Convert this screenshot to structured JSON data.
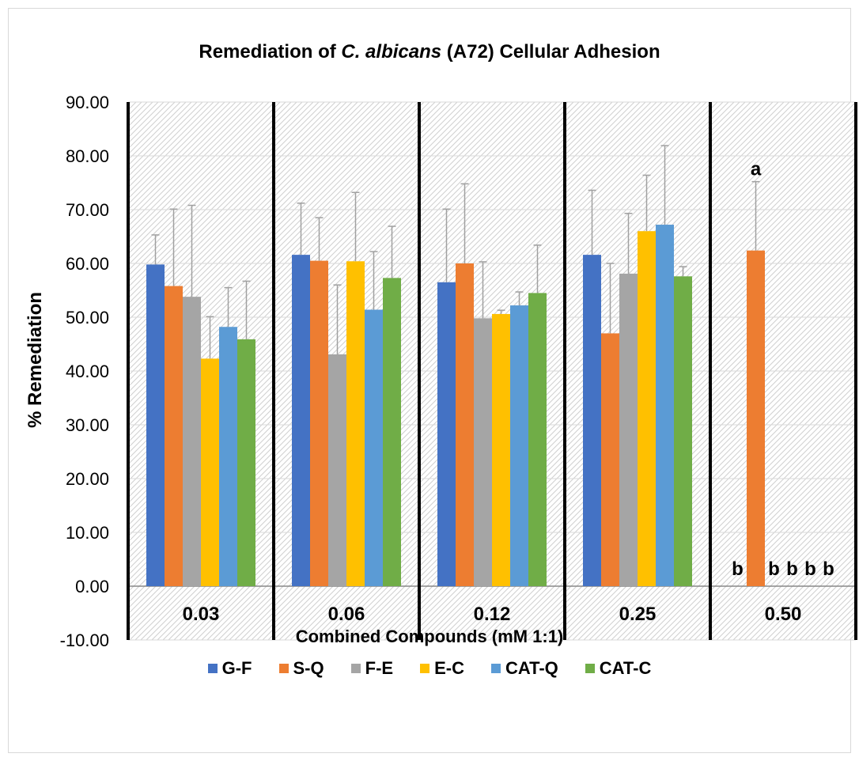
{
  "chart_data": {
    "type": "bar",
    "title_prefix": "Remediation of ",
    "title_italic": "C. albicans",
    "title_suffix": " (A72) Cellular Adhesion",
    "xlabel": "Combined Compounds (mM 1:1)",
    "ylabel": "% Remediation",
    "ylim": [
      -10,
      90
    ],
    "yticks": [
      "-10.00",
      "0.00",
      "10.00",
      "20.00",
      "30.00",
      "40.00",
      "50.00",
      "60.00",
      "70.00",
      "80.00",
      "90.00"
    ],
    "categories": [
      "0.03",
      "0.06",
      "0.12",
      "0.25",
      "0.50"
    ],
    "legend_position": "bottom",
    "grid": true,
    "series": [
      {
        "name": "G-F",
        "color": "#4472C4",
        "values": [
          59.8,
          61.6,
          56.5,
          61.6,
          0
        ],
        "errors": [
          5.5,
          9.6,
          13.6,
          12.0,
          0
        ],
        "labels": [
          "",
          "",
          "",
          "",
          "b"
        ]
      },
      {
        "name": "S-Q",
        "color": "#ED7D31",
        "values": [
          55.8,
          60.5,
          60.0,
          47.0,
          62.4
        ],
        "errors": [
          14.3,
          8.0,
          14.8,
          13.0,
          12.8
        ],
        "labels": [
          "",
          "",
          "",
          "",
          "a"
        ]
      },
      {
        "name": "F-E",
        "color": "#A5A5A5",
        "values": [
          53.8,
          43.1,
          49.8,
          58.1,
          0
        ],
        "errors": [
          17.0,
          12.9,
          10.5,
          11.2,
          0
        ],
        "labels": [
          "",
          "",
          "",
          "",
          "b"
        ]
      },
      {
        "name": "E-C",
        "color": "#FFC000",
        "values": [
          42.3,
          60.4,
          50.6,
          66.0,
          0
        ],
        "errors": [
          7.8,
          12.8,
          0.7,
          10.4,
          0
        ],
        "labels": [
          "",
          "",
          "",
          "",
          "b"
        ]
      },
      {
        "name": "CAT-Q",
        "color": "#5B9BD5",
        "values": [
          48.2,
          51.4,
          52.2,
          67.2,
          0
        ],
        "errors": [
          7.3,
          10.8,
          2.5,
          14.7,
          0
        ],
        "labels": [
          "",
          "",
          "",
          "",
          "b"
        ]
      },
      {
        "name": "CAT-C",
        "color": "#70AD47",
        "values": [
          45.9,
          57.3,
          54.5,
          57.6,
          0
        ],
        "errors": [
          10.8,
          9.6,
          8.9,
          1.8,
          0
        ],
        "labels": [
          "",
          "",
          "",
          "",
          "b"
        ]
      }
    ]
  }
}
